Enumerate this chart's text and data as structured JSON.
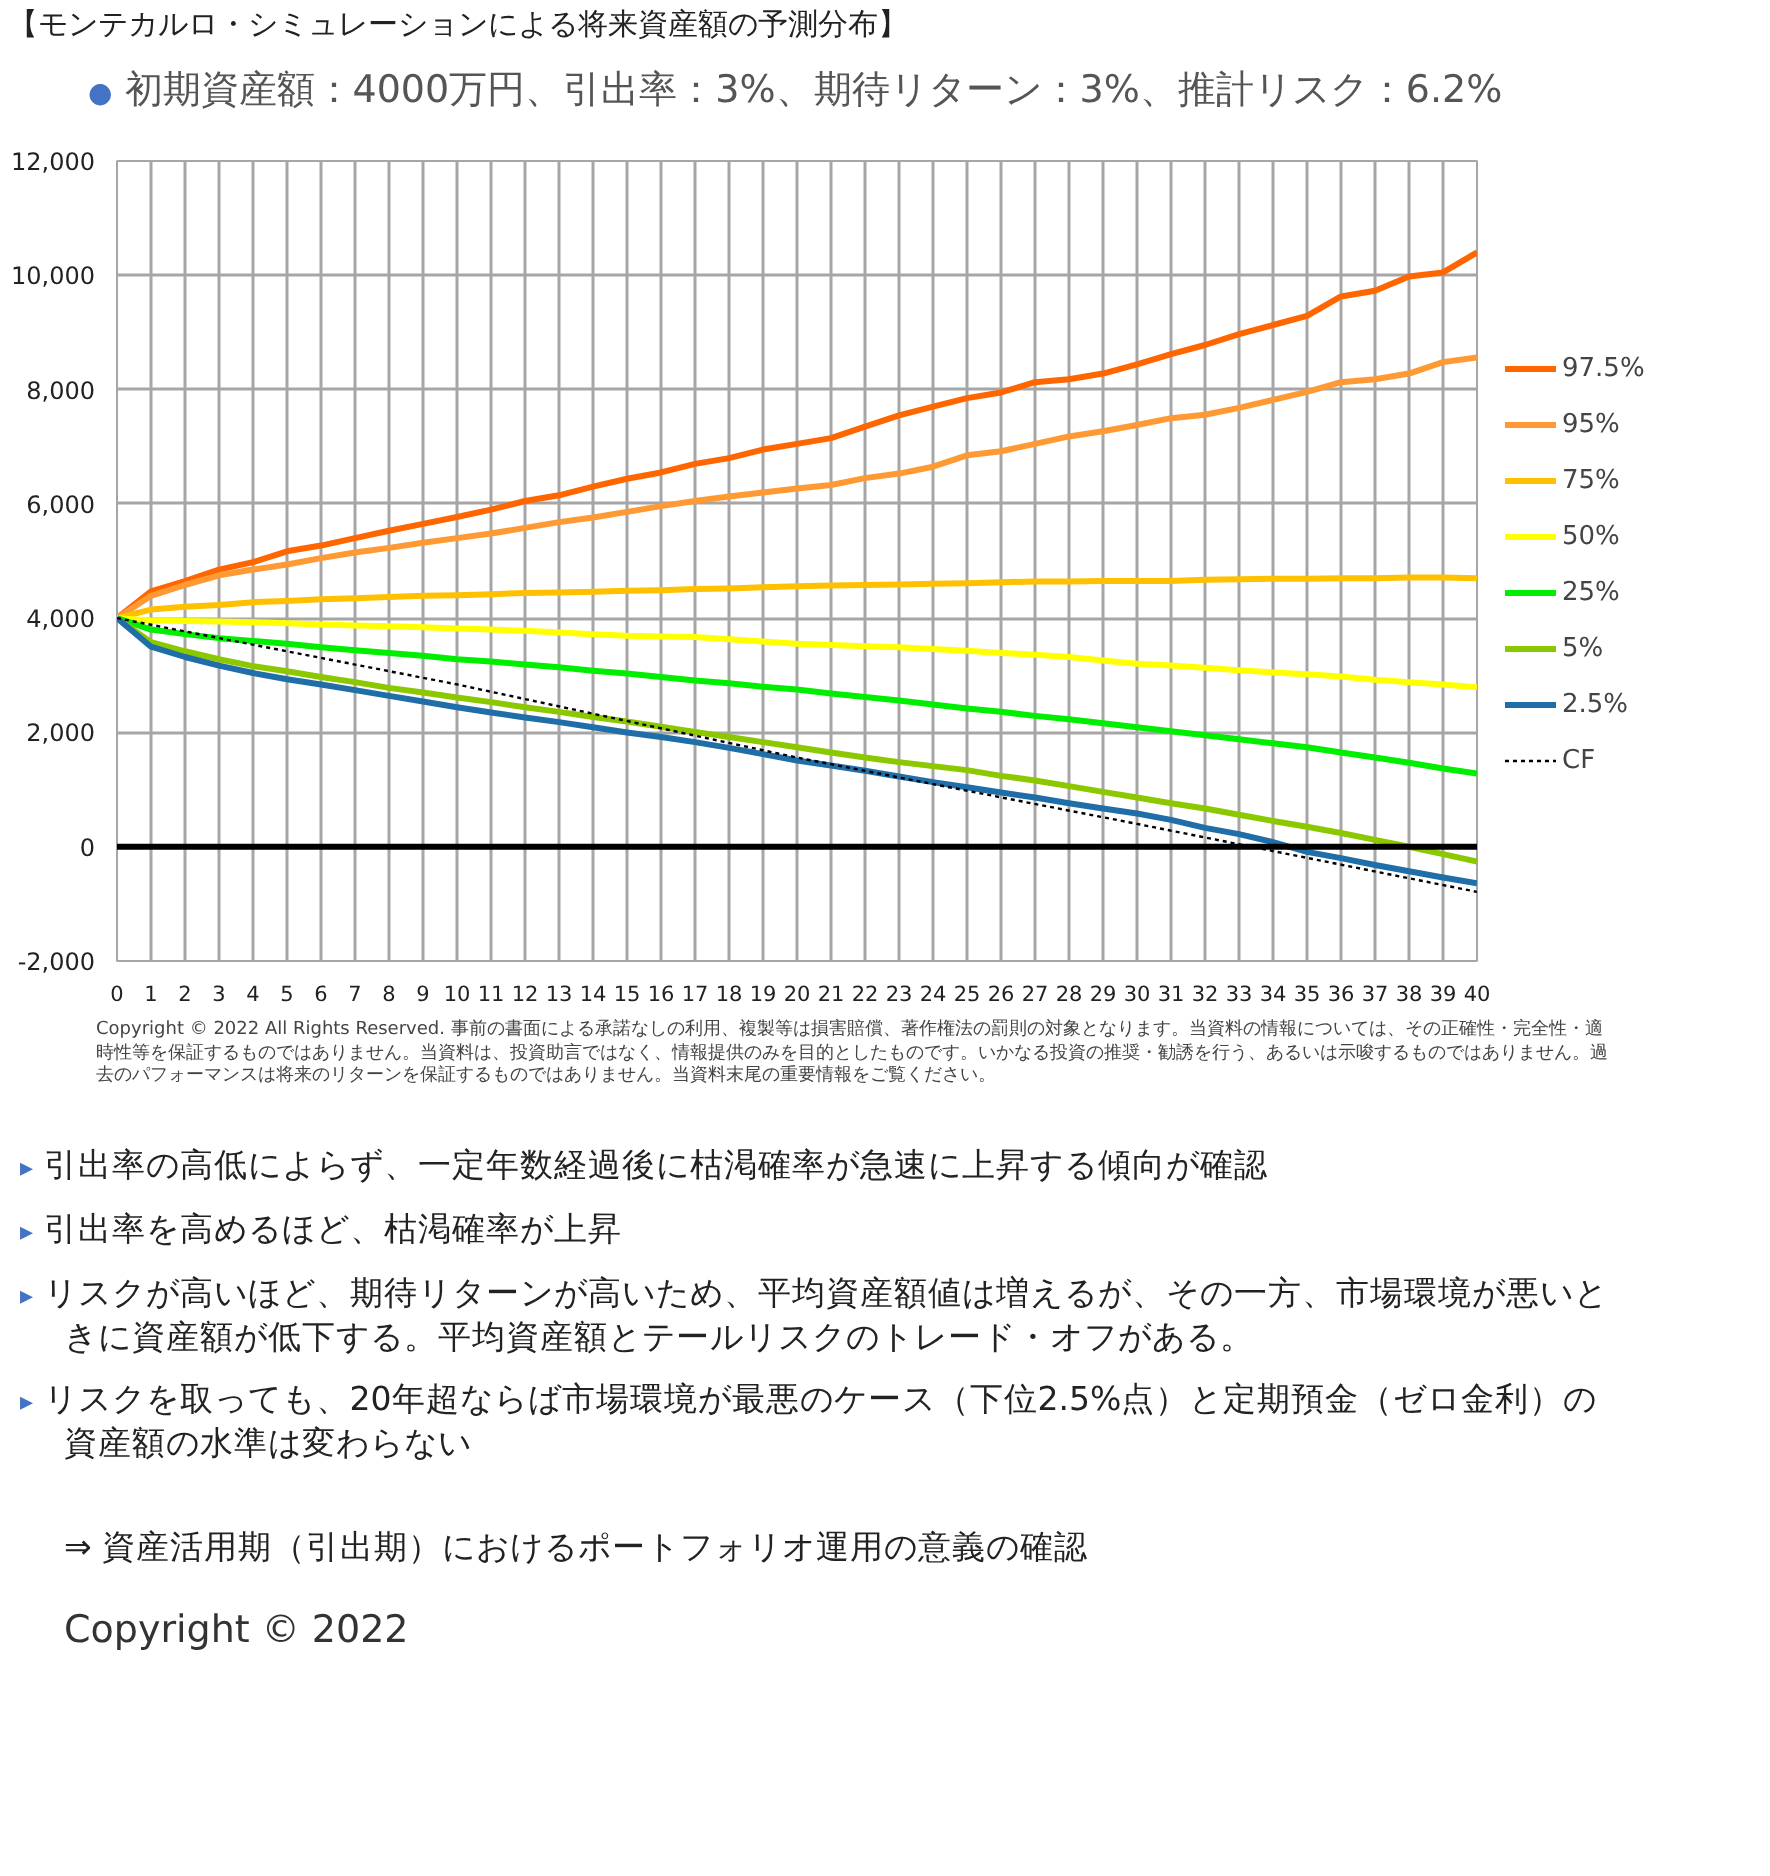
{
  "chart_data": {
    "type": "line",
    "title": "【モンテカルロ・シミュレーションによる将来資産額の予測分布】",
    "subtitle": "● 初期資産額：4000万円、引出率：3%、期待リターン：3%、推計リスク：6.2%",
    "x": [
      0,
      1,
      2,
      3,
      4,
      5,
      6,
      7,
      8,
      9,
      10,
      11,
      12,
      13,
      14,
      15,
      16,
      17,
      18,
      19,
      20,
      21,
      22,
      23,
      24,
      25,
      26,
      27,
      28,
      29,
      30,
      31,
      32,
      33,
      34,
      35,
      36,
      37,
      38,
      39,
      40
    ],
    "xlim": [
      0,
      40
    ],
    "xticks": [
      0,
      1,
      2,
      3,
      4,
      5,
      6,
      7,
      8,
      9,
      10,
      11,
      12,
      13,
      14,
      15,
      16,
      17,
      18,
      19,
      20,
      21,
      22,
      23,
      24,
      25,
      26,
      27,
      28,
      29,
      30,
      31,
      32,
      33,
      34,
      35,
      36,
      37,
      38,
      39,
      40
    ],
    "ylim": [
      -2000,
      12000
    ],
    "yticks": [
      {
        "value": -2000,
        "label": "-2,000"
      },
      0,
      {
        "value": 2000,
        "label": "2,000"
      },
      {
        "value": 4000,
        "label": "4,000"
      },
      {
        "value": 6000,
        "label": "6,000"
      },
      {
        "value": 8000,
        "label": "8,000"
      },
      {
        "value": 10000,
        "label": "10,000"
      },
      {
        "value": 12000,
        "label": "12,000"
      }
    ],
    "grid": true,
    "legend": "right",
    "series": [
      {
        "name": "97.5%",
        "color": "#ff6600",
        "values": [
          4000,
          4470,
          4650,
          4850,
          4980,
          5170,
          5270,
          5400,
          5530,
          5650,
          5770,
          5900,
          6050,
          6150,
          6300,
          6440,
          6550,
          6700,
          6800,
          6950,
          7050,
          7150,
          7350,
          7550,
          7700,
          7850,
          7950,
          8130,
          8180,
          8280,
          8440,
          8620,
          8780,
          8970,
          9130,
          9290,
          9630,
          9730,
          9980,
          10050,
          10400
        ]
      },
      {
        "name": "95%",
        "color": "#ff9933",
        "values": [
          4000,
          4390,
          4580,
          4750,
          4850,
          4940,
          5050,
          5150,
          5230,
          5320,
          5400,
          5480,
          5580,
          5680,
          5760,
          5860,
          5960,
          6050,
          6130,
          6200,
          6270,
          6330,
          6450,
          6530,
          6650,
          6850,
          6920,
          7050,
          7180,
          7270,
          7380,
          7500,
          7560,
          7680,
          7820,
          7960,
          8130,
          8180,
          8280,
          8480,
          8560
        ]
      },
      {
        "name": "75%",
        "color": "#ffc000",
        "values": [
          4000,
          4150,
          4200,
          4230,
          4280,
          4300,
          4330,
          4350,
          4370,
          4390,
          4400,
          4420,
          4440,
          4450,
          4460,
          4480,
          4490,
          4510,
          4520,
          4540,
          4560,
          4570,
          4580,
          4590,
          4600,
          4610,
          4630,
          4640,
          4640,
          4650,
          4650,
          4650,
          4670,
          4680,
          4690,
          4690,
          4700,
          4700,
          4710,
          4710,
          4700
        ]
      },
      {
        "name": "50%",
        "color": "#ffff00",
        "values": [
          4000,
          3960,
          3950,
          3940,
          3930,
          3910,
          3890,
          3870,
          3860,
          3840,
          3820,
          3800,
          3780,
          3750,
          3720,
          3690,
          3680,
          3670,
          3630,
          3590,
          3550,
          3530,
          3510,
          3490,
          3460,
          3430,
          3390,
          3360,
          3320,
          3260,
          3200,
          3170,
          3130,
          3090,
          3050,
          3020,
          2980,
          2920,
          2880,
          2840,
          2790
        ]
      },
      {
        "name": "25%",
        "color": "#00ee00",
        "values": [
          4000,
          3800,
          3720,
          3650,
          3600,
          3550,
          3490,
          3440,
          3390,
          3340,
          3280,
          3240,
          3190,
          3140,
          3080,
          3030,
          2970,
          2910,
          2860,
          2800,
          2750,
          2680,
          2620,
          2560,
          2490,
          2420,
          2360,
          2290,
          2230,
          2160,
          2090,
          2020,
          1950,
          1880,
          1810,
          1740,
          1650,
          1560,
          1470,
          1370,
          1280
        ]
      },
      {
        "name": "5%",
        "color": "#8cc800",
        "values": [
          4000,
          3580,
          3420,
          3280,
          3160,
          3070,
          2970,
          2880,
          2780,
          2700,
          2610,
          2530,
          2440,
          2360,
          2270,
          2190,
          2100,
          2010,
          1920,
          1830,
          1740,
          1650,
          1560,
          1480,
          1410,
          1340,
          1240,
          1160,
          1060,
          960,
          860,
          760,
          670,
          560,
          450,
          350,
          240,
          120,
          0,
          -130,
          -260
        ]
      },
      {
        "name": "2.5%",
        "color": "#1f6ea8",
        "values": [
          4000,
          3500,
          3320,
          3170,
          3040,
          2930,
          2840,
          2740,
          2640,
          2540,
          2440,
          2350,
          2260,
          2180,
          2090,
          2000,
          1920,
          1830,
          1730,
          1620,
          1510,
          1420,
          1330,
          1230,
          1130,
          1040,
          950,
          860,
          760,
          670,
          580,
          470,
          330,
          220,
          80,
          -90,
          -200,
          -320,
          -430,
          -540,
          -640
        ]
      },
      {
        "name": "CF",
        "color": "#000000",
        "line_style": "dotted",
        "x": [
          0,
          10,
          20,
          30,
          40
        ],
        "values": [
          4000,
          2840,
          1560,
          400,
          -790
        ]
      }
    ],
    "ref_lines": [
      {
        "axis": "y",
        "value": 0,
        "color": "#000000"
      }
    ],
    "annotations": [
      "Copyright © 2022 All Rights Reserved. 事前の書面による承諾なしの利用、複製等は損害賠償、著作権法の罰則の対象となります。当資料の情報については、その正確性・完全性・適時性等を保証するものではありません。当資料は、投資助言ではなく、情報提供のみを目的としたものです。いかなる投資の推奨・勧誘を行う、あるいは示唆するものではありません。過去のパフォーマンスは将来のリターンを保証するものではありません。当資料末尾の重要情報をご覧ください。",
      "▸ 引出率の高低によらず、一定年数経過後に枯渇確率が急速に上昇する傾向が確認",
      "▸ 引出率を高めるほど、枯渇確率が上昇",
      "▸ リスクが高いほど、期待リターンが高いため、平均資産額値は増えるが、その一方、市場環境が悪いときに資産額が低下する。平均資産額とテールリスクのトレード・オフがある。",
      "▸ リスクを取っても、20年超ならば市場環境が最悪のケース（下位2.5%点）と定期預金（ゼロ金利）の資産額の水準は変わらない",
      "⇒ 資産活用期（引出期）におけるポートフォリオ運用の意義の確認",
      "Copyright © 2022"
    ]
  }
}
